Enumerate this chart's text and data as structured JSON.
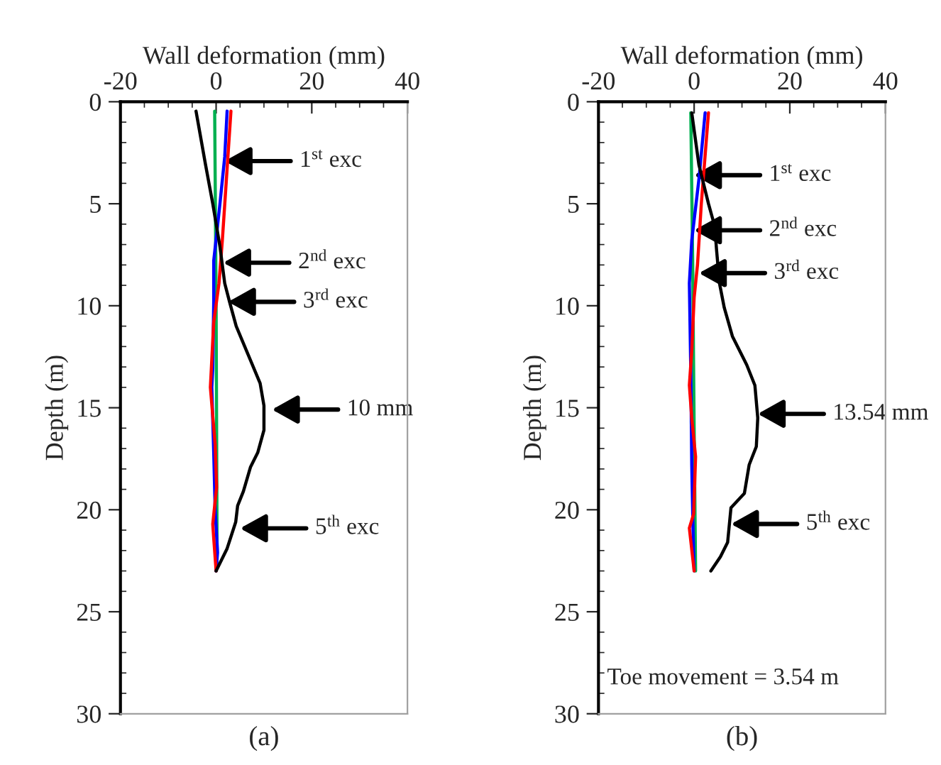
{
  "chart_data": [
    {
      "type": "line",
      "xlabel": "Wall deformation (mm)",
      "ylabel": "Depth (m)",
      "xlim": [
        -20,
        40
      ],
      "ylim": [
        30,
        0
      ],
      "xticks": [
        -20,
        0,
        20,
        40
      ],
      "yticks": [
        0,
        5,
        10,
        15,
        20,
        25,
        30
      ],
      "series": [
        {
          "color": "#00b050",
          "x": [
            -0.3,
            0,
            0.2,
            0
          ],
          "values": [
            0.46,
            10,
            22,
            23
          ]
        },
        {
          "color": "#0000ff",
          "x": [
            2.3,
            1.8,
            0.8,
            -0.5,
            -0.5,
            -0.7,
            -0.9,
            -0.5,
            -0.2,
            0.3,
            0
          ],
          "values": [
            0.46,
            2.7,
            5,
            7.8,
            9.8,
            13.1,
            14,
            17.2,
            20,
            22.1,
            23
          ]
        },
        {
          "color": "#ff0000",
          "x": [
            3.1,
            1.3,
            0.6,
            -0.5,
            -1.2,
            -0.2,
            0.1,
            -0.7,
            -0.5,
            0
          ],
          "values": [
            0.46,
            6.8,
            8.9,
            10.8,
            14,
            16.8,
            18.9,
            20.7,
            21.4,
            23
          ]
        },
        {
          "color": "#000000",
          "x": [
            -4.2,
            -2.2,
            -0.7,
            0.8,
            1.8,
            2.8,
            4.2,
            6.7,
            9.2,
            10,
            10,
            8.7,
            7.2,
            5.7,
            4.5,
            4.1,
            2.3,
            0
          ],
          "values": [
            0.46,
            3.1,
            5,
            7.1,
            8.9,
            9.8,
            11,
            12.4,
            13.8,
            14.9,
            16.1,
            17.2,
            17.9,
            19.1,
            19.8,
            20.6,
            21.9,
            23
          ]
        }
      ],
      "annotations": [
        "1$^{st}$ exc",
        "2$^{nd}$ exc",
        "3$^{rd}$ exc",
        "10 mm",
        "5$^{th}$ exc",
        "(a)"
      ]
    },
    {
      "type": "line",
      "xlabel": "Wall deformation (mm)",
      "ylabel": "Depth (m)",
      "xlim": [
        -20,
        40
      ],
      "ylim": [
        30,
        0
      ],
      "xticks": [
        -20,
        0,
        20,
        40
      ],
      "yticks": [
        0,
        5,
        10,
        15,
        20,
        25,
        30
      ],
      "series": [
        {
          "color": "#00b050",
          "x": [
            -0.7,
            -0.3,
            0,
            0.3
          ],
          "values": [
            0.54,
            8,
            16,
            23
          ]
        },
        {
          "color": "#0000ff",
          "x": [
            2.3,
            1,
            -0.5,
            -1,
            -0.7,
            -0.5,
            -0.2,
            0
          ],
          "values": [
            0.54,
            3.8,
            6.8,
            8.9,
            13.2,
            17.8,
            21.3,
            23
          ]
        },
        {
          "color": "#ff0000",
          "x": [
            3,
            1.5,
            0.7,
            0,
            -0.5,
            -1,
            -0.5,
            0.3,
            -0.1,
            -1,
            0
          ],
          "values": [
            0.54,
            5,
            8,
            9.6,
            12.2,
            13.9,
            15.5,
            17.4,
            20.2,
            20.9,
            23
          ]
        },
        {
          "color": "#000000",
          "x": [
            -0.5,
            1,
            3,
            4.3,
            4.7,
            5.3,
            6.3,
            8,
            11,
            12.7,
            13.3,
            13,
            11.5,
            10.5,
            7.7,
            7,
            5.5,
            3.5
          ],
          "values": [
            0.54,
            3.1,
            5,
            6.1,
            7.3,
            8.9,
            10.1,
            11.5,
            12.9,
            13.9,
            15.5,
            16.9,
            17.8,
            19.2,
            19.9,
            21.6,
            22.3,
            23
          ]
        }
      ],
      "annotations": [
        "1$^{st}$ exc",
        "2$^{nd}$ exc",
        "3$^{rd}$ exc",
        "13.54 mm",
        "5$^{th}$ exc",
        "Toe movement = 3.54 m",
        "(b)"
      ]
    }
  ]
}
